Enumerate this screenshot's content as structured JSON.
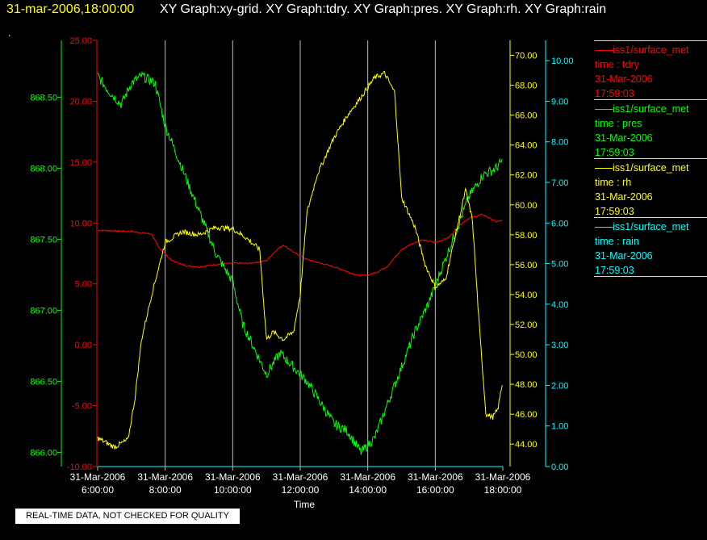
{
  "header": {
    "timestamp": "31-mar-2006,18:00:00",
    "graphs_text": "XY Graph:xy-grid.  XY Graph:tdry.  XY Graph:pres.  XY Graph:rh.  XY Graph:rain",
    "dot": "."
  },
  "footer": {
    "disclaimer": "REAL-TIME DATA, NOT CHECKED FOR QUALITY"
  },
  "colors": {
    "tdry": "#ff0000",
    "pres": "#00ff00",
    "rh": "#ffff00",
    "rain": "#00ffff",
    "grid": "#bdbdbd",
    "background": "#000000"
  },
  "legend": [
    {
      "series": "iss1/surface_met",
      "field": "time : tdry",
      "date": "31-Mar-2006",
      "time": "17:59:03",
      "color": "#ff0000"
    },
    {
      "series": "iss1/surface_met",
      "field": "time : pres",
      "date": "31-Mar-2006",
      "time": "17:59:03",
      "color": "#00ff00"
    },
    {
      "series": "iss1/surface_met",
      "field": "time : rh",
      "date": "31-Mar-2006",
      "time": "17:59:03",
      "color": "#ffff00"
    },
    {
      "series": "iss1/surface_met",
      "field": "time : rain",
      "date": "31-Mar-2006",
      "time": "17:59:03",
      "color": "#00ffff"
    }
  ],
  "chart_data": {
    "type": "line",
    "xlabel": "Time",
    "x_range": [
      "31-Mar-2006 6:00:00",
      "31-Mar-2006 18:00:00"
    ],
    "x_ticks": [
      {
        "date": "31-Mar-2006",
        "time": "6:00:00",
        "hour": 6
      },
      {
        "date": "31-Mar-2006",
        "time": "8:00:00",
        "hour": 8
      },
      {
        "date": "31-Mar-2006",
        "time": "10:00:00",
        "hour": 10
      },
      {
        "date": "31-Mar-2006",
        "time": "12:00:00",
        "hour": 12
      },
      {
        "date": "31-Mar-2006",
        "time": "14:00:00",
        "hour": 14
      },
      {
        "date": "31-Mar-2006",
        "time": "16:00:00",
        "hour": 16
      },
      {
        "date": "31-Mar-2006",
        "time": "18:00:00",
        "hour": 18
      }
    ],
    "grid": true,
    "axes": {
      "pres": {
        "side": "left-outer",
        "color": "#00ff00",
        "ylim": [
          865.9,
          868.9
        ],
        "ticks": [
          "866.00",
          "866.50",
          "867.00",
          "867.50",
          "868.00",
          "868.50"
        ]
      },
      "tdry": {
        "side": "left-inner",
        "color": "#ff0000",
        "ylim": [
          -10,
          25
        ],
        "ticks": [
          "-10.00",
          "-5.00",
          "0.00",
          "5.00",
          "10.00",
          "25.00",
          "20.00",
          "15.00"
        ]
      },
      "rh": {
        "side": "right-inner",
        "color": "#ffff00",
        "ylim": [
          42.5,
          71
        ],
        "ticks": [
          "44.00",
          "46.00",
          "48.00",
          "50.00",
          "52.00",
          "54.00",
          "56.00",
          "58.00",
          "60.00",
          "62.00",
          "64.00",
          "66.00",
          "68.00",
          "70.00"
        ]
      },
      "rain": {
        "side": "right-outer",
        "color": "#00ffff",
        "ylim": [
          0,
          10.5
        ],
        "ticks": [
          "0.00",
          "1.00",
          "2.00",
          "3.00",
          "4.00",
          "5.00",
          "6.00",
          "7.00",
          "8.00",
          "9.00",
          "10.00"
        ]
      }
    },
    "series": [
      {
        "name": "tdry",
        "color": "#ff0000",
        "axis": "tdry",
        "points": [
          [
            6,
            9.4
          ],
          [
            7.0,
            9.3
          ],
          [
            7.6,
            9.1
          ],
          [
            7.8,
            8.0
          ],
          [
            8.2,
            6.9
          ],
          [
            8.6,
            6.5
          ],
          [
            9.0,
            6.4
          ],
          [
            9.5,
            6.6
          ],
          [
            10.0,
            6.7
          ],
          [
            10.5,
            6.7
          ],
          [
            11.0,
            6.9
          ],
          [
            11.3,
            7.8
          ],
          [
            11.5,
            8.2
          ],
          [
            11.8,
            7.6
          ],
          [
            12.2,
            7.0
          ],
          [
            12.6,
            6.7
          ],
          [
            13.0,
            6.4
          ],
          [
            13.4,
            6.0
          ],
          [
            13.7,
            5.7
          ],
          [
            14.0,
            5.7
          ],
          [
            14.3,
            6.0
          ],
          [
            14.6,
            6.5
          ],
          [
            15.0,
            7.8
          ],
          [
            15.3,
            8.3
          ],
          [
            15.6,
            8.6
          ],
          [
            16.0,
            8.4
          ],
          [
            16.4,
            8.8
          ],
          [
            16.7,
            9.8
          ],
          [
            17.0,
            10.4
          ],
          [
            17.4,
            10.7
          ],
          [
            17.8,
            10.1
          ],
          [
            17.98,
            10.2
          ]
        ]
      },
      {
        "name": "pres",
        "color": "#00ff00",
        "axis": "pres",
        "points": [
          [
            6,
            868.65
          ],
          [
            6.3,
            868.55
          ],
          [
            6.7,
            868.45
          ],
          [
            7.0,
            868.6
          ],
          [
            7.3,
            868.65
          ],
          [
            7.7,
            868.6
          ],
          [
            8.0,
            868.3
          ],
          [
            8.5,
            868.0
          ],
          [
            9.0,
            867.7
          ],
          [
            9.5,
            867.4
          ],
          [
            10.0,
            867.2
          ],
          [
            10.3,
            866.9
          ],
          [
            10.6,
            866.75
          ],
          [
            11.0,
            866.55
          ],
          [
            11.4,
            866.7
          ],
          [
            11.8,
            866.6
          ],
          [
            12.2,
            866.5
          ],
          [
            12.6,
            866.35
          ],
          [
            13.0,
            866.2
          ],
          [
            13.4,
            866.15
          ],
          [
            13.8,
            866.0
          ],
          [
            14.2,
            866.1
          ],
          [
            14.6,
            866.35
          ],
          [
            15.0,
            866.6
          ],
          [
            15.4,
            866.85
          ],
          [
            15.8,
            867.05
          ],
          [
            16.2,
            867.3
          ],
          [
            16.6,
            867.55
          ],
          [
            17.0,
            867.8
          ],
          [
            17.4,
            867.95
          ],
          [
            17.8,
            868.0
          ],
          [
            17.98,
            868.05
          ]
        ]
      },
      {
        "name": "rh",
        "color": "#ffff00",
        "axis": "rh",
        "points": [
          [
            6,
            44.4
          ],
          [
            6.5,
            43.8
          ],
          [
            6.9,
            44.3
          ],
          [
            7.1,
            47.0
          ],
          [
            7.3,
            51.0
          ],
          [
            7.6,
            54.0
          ],
          [
            8.0,
            57.5
          ],
          [
            8.5,
            58.2
          ],
          [
            9.0,
            58.0
          ],
          [
            9.5,
            58.5
          ],
          [
            10.0,
            58.4
          ],
          [
            10.4,
            57.8
          ],
          [
            10.8,
            57.0
          ],
          [
            11.0,
            51.0
          ],
          [
            11.2,
            51.5
          ],
          [
            11.5,
            51.0
          ],
          [
            11.8,
            51.5
          ],
          [
            12.0,
            54.0
          ],
          [
            12.2,
            59.5
          ],
          [
            12.5,
            62.0
          ],
          [
            13.0,
            64.5
          ],
          [
            13.4,
            66.0
          ],
          [
            13.8,
            67.2
          ],
          [
            14.2,
            68.5
          ],
          [
            14.5,
            68.8
          ],
          [
            14.8,
            67.5
          ],
          [
            15.0,
            60.5
          ],
          [
            15.4,
            58.5
          ],
          [
            15.7,
            56.0
          ],
          [
            16.0,
            54.5
          ],
          [
            16.3,
            55.0
          ],
          [
            16.6,
            58.0
          ],
          [
            16.9,
            61.0
          ],
          [
            17.1,
            59.0
          ],
          [
            17.3,
            52.0
          ],
          [
            17.5,
            46.0
          ],
          [
            17.7,
            45.8
          ],
          [
            17.85,
            46.3
          ],
          [
            17.98,
            48.0
          ]
        ]
      },
      {
        "name": "rain",
        "color": "#00ffff",
        "axis": "rain",
        "points": [
          [
            6,
            0.0
          ],
          [
            18,
            0.0
          ]
        ]
      }
    ]
  }
}
